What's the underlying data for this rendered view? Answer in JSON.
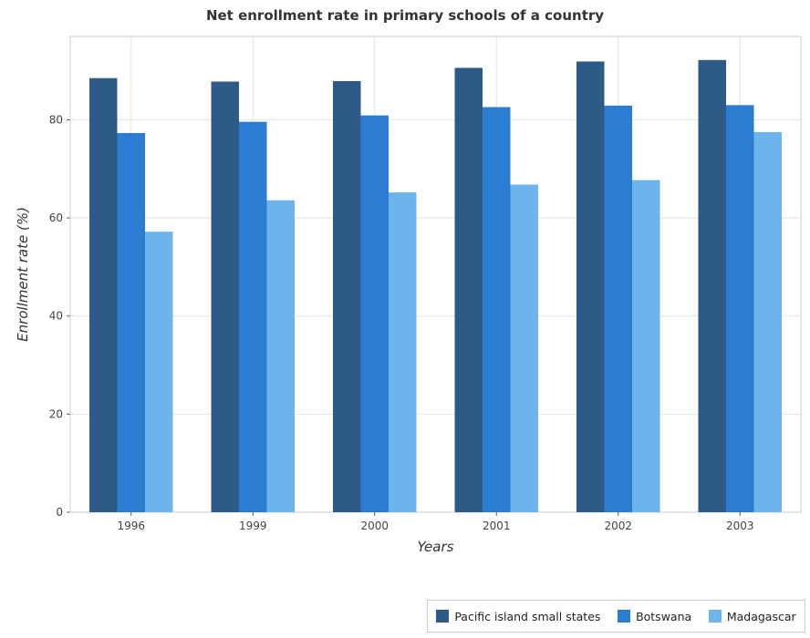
{
  "title": "Net enrollment rate in primary schools of a country",
  "chart_data": {
    "type": "bar",
    "title": "Net enrollment rate in primary schools of a country",
    "xlabel": "Years",
    "ylabel": "Enrollment rate (%)",
    "categories": [
      "1996",
      "1999",
      "2000",
      "2001",
      "2002",
      "2003"
    ],
    "ylim": [
      0,
      97
    ],
    "yticks": [
      0,
      20,
      40,
      60,
      80
    ],
    "grid": true,
    "legend_position": "bottom-right",
    "series": [
      {
        "name": "Pacific island small states",
        "color": "#2d5a87",
        "values": [
          88.5,
          87.8,
          87.9,
          90.6,
          91.9,
          92.2
        ]
      },
      {
        "name": "Botswana",
        "color": "#2a7dd1",
        "values": [
          77.3,
          79.6,
          80.9,
          82.6,
          82.9,
          83.0
        ]
      },
      {
        "name": "Madagascar",
        "color": "#6db4ec",
        "values": [
          57.2,
          63.6,
          65.2,
          66.8,
          67.7,
          77.5
        ]
      }
    ]
  }
}
